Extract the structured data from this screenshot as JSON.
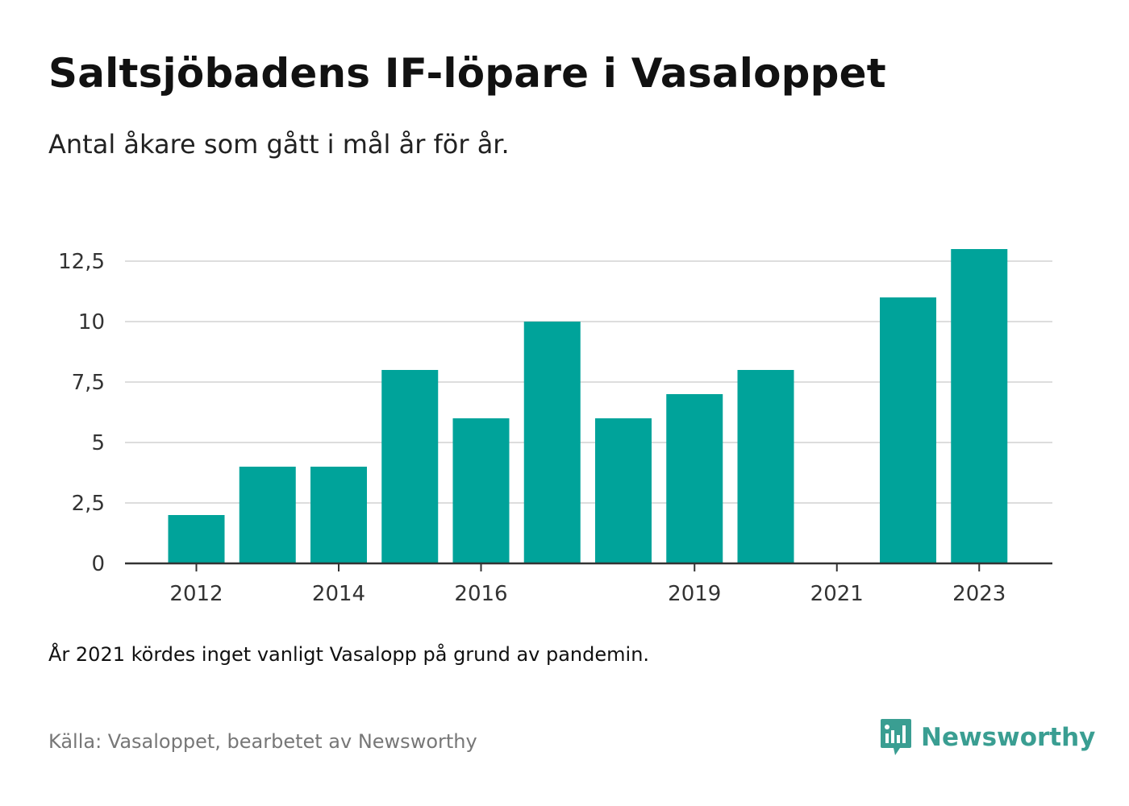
{
  "header": {
    "title": "Saltsjöbadens IF-löpare i Vasaloppet",
    "subtitle": "Antal åkare som gått i mål år för år."
  },
  "footer": {
    "note": "År 2021 kördes inget vanligt Vasalopp på grund av pandemin.",
    "source": "Källa: Vasaloppet, bearbetet av Newsworthy",
    "brand": "Newsworthy"
  },
  "colors": {
    "bar": "#00a39a",
    "grid": "#dddddd",
    "axis": "#333333",
    "brand": "#3a9e92"
  },
  "chart_data": {
    "type": "bar",
    "categories": [
      2012,
      2013,
      2014,
      2015,
      2016,
      2017,
      2018,
      2019,
      2020,
      2021,
      2022,
      2023
    ],
    "values": [
      2,
      4,
      4,
      8,
      6,
      10,
      6,
      7,
      8,
      0,
      11,
      13
    ],
    "x_tick_labels": [
      "2012",
      "2014",
      "2016",
      "2019",
      "2021",
      "2023"
    ],
    "y_ticks": [
      0,
      2.5,
      5,
      7.5,
      10,
      12.5
    ],
    "y_tick_labels": [
      "0",
      "2,5",
      "5",
      "7,5",
      "10",
      "12,5"
    ],
    "ylim": [
      0,
      13
    ],
    "grid": true,
    "legend": "none"
  }
}
